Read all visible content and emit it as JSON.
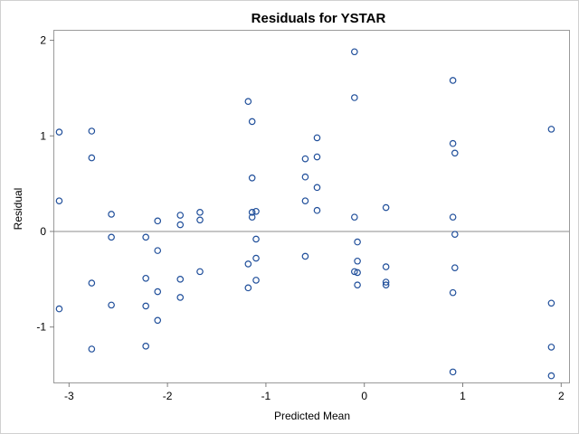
{
  "chart_data": {
    "type": "scatter",
    "title": "Residuals for YSTAR",
    "xlabel": "Predicted Mean",
    "ylabel": "Residual",
    "xlim": [
      -3.15,
      2.08
    ],
    "ylim": [
      -1.58,
      2.1
    ],
    "xticks": [
      -3,
      -2,
      -1,
      0,
      1,
      2
    ],
    "yticks": [
      -1,
      0,
      1,
      2
    ],
    "reference_line_y": 0,
    "grid": false,
    "marker": "open-circle",
    "colors": {
      "marker": "#1f4e9a",
      "refline": "#8c8c8c",
      "frame": "#9a9a9a"
    },
    "series": [
      {
        "points": [
          [
            -3.1,
            1.04
          ],
          [
            -3.1,
            0.32
          ],
          [
            -3.1,
            -0.81
          ],
          [
            -2.77,
            1.05
          ],
          [
            -2.77,
            0.77
          ],
          [
            -2.77,
            -0.54
          ],
          [
            -2.77,
            -1.23
          ],
          [
            -2.57,
            0.18
          ],
          [
            -2.57,
            -0.06
          ],
          [
            -2.57,
            -0.77
          ],
          [
            -2.22,
            -0.06
          ],
          [
            -2.22,
            -0.49
          ],
          [
            -2.22,
            -0.78
          ],
          [
            -2.22,
            -1.2
          ],
          [
            -2.1,
            0.11
          ],
          [
            -2.1,
            -0.2
          ],
          [
            -2.1,
            -0.63
          ],
          [
            -2.1,
            -0.93
          ],
          [
            -1.87,
            0.17
          ],
          [
            -1.87,
            0.07
          ],
          [
            -1.87,
            -0.5
          ],
          [
            -1.87,
            -0.69
          ],
          [
            -1.67,
            0.2
          ],
          [
            -1.67,
            0.12
          ],
          [
            -1.67,
            -0.42
          ],
          [
            -1.18,
            1.36
          ],
          [
            -1.18,
            -0.34
          ],
          [
            -1.18,
            -0.59
          ],
          [
            -1.14,
            1.15
          ],
          [
            -1.14,
            0.56
          ],
          [
            -1.14,
            0.2
          ],
          [
            -1.14,
            0.15
          ],
          [
            -1.1,
            0.21
          ],
          [
            -1.1,
            -0.08
          ],
          [
            -1.1,
            -0.28
          ],
          [
            -1.1,
            -0.51
          ],
          [
            -0.6,
            0.76
          ],
          [
            -0.6,
            0.57
          ],
          [
            -0.6,
            0.32
          ],
          [
            -0.6,
            -0.26
          ],
          [
            -0.48,
            0.98
          ],
          [
            -0.48,
            0.78
          ],
          [
            -0.48,
            0.46
          ],
          [
            -0.48,
            0.22
          ],
          [
            -0.1,
            1.88
          ],
          [
            -0.1,
            1.4
          ],
          [
            -0.1,
            0.15
          ],
          [
            -0.1,
            -0.42
          ],
          [
            -0.07,
            -0.11
          ],
          [
            -0.07,
            -0.31
          ],
          [
            -0.07,
            -0.43
          ],
          [
            -0.07,
            -0.56
          ],
          [
            0.22,
            0.25
          ],
          [
            0.22,
            -0.37
          ],
          [
            0.22,
            -0.53
          ],
          [
            0.22,
            -0.56
          ],
          [
            0.9,
            1.58
          ],
          [
            0.9,
            0.92
          ],
          [
            0.9,
            0.15
          ],
          [
            0.9,
            -0.64
          ],
          [
            0.9,
            -1.47
          ],
          [
            0.92,
            0.82
          ],
          [
            0.92,
            -0.03
          ],
          [
            0.92,
            -0.38
          ],
          [
            1.9,
            1.07
          ],
          [
            1.9,
            -0.75
          ],
          [
            1.9,
            -1.21
          ],
          [
            1.9,
            -1.51
          ]
        ]
      }
    ]
  }
}
